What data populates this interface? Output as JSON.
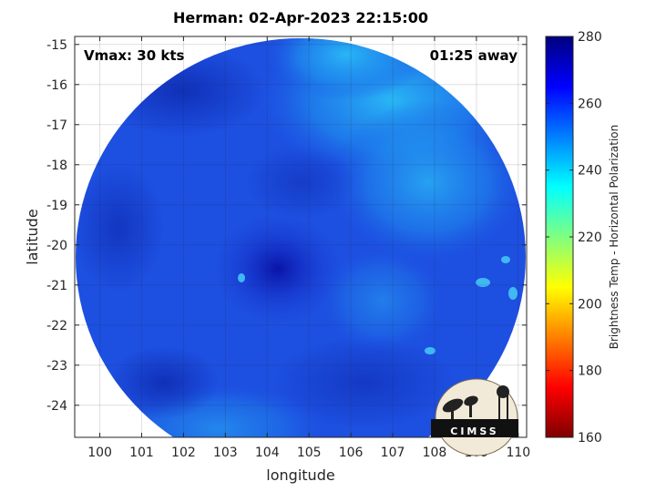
{
  "title": "Herman: 02-Apr-2023 22:15:00",
  "annotations": {
    "vmax": "Vmax: 30 kts",
    "time_away": "01:25 away"
  },
  "map": {
    "xlabel": "longitude",
    "ylabel": "latitude",
    "xlim": [
      99.4,
      110.2
    ],
    "ylim": [
      -24.8,
      -14.8
    ],
    "x_ticks": [
      "100",
      "101",
      "102",
      "103",
      "104",
      "105",
      "106",
      "107",
      "108",
      "109",
      "110"
    ],
    "y_ticks": [
      "-15",
      "-16",
      "-17",
      "-18",
      "-19",
      "-20",
      "-21",
      "-22",
      "-23",
      "-24"
    ],
    "grid": true
  },
  "colorbar": {
    "label": "Brightness Temp - Horizontal Polarization",
    "ticks": [
      "160",
      "180",
      "200",
      "220",
      "240",
      "260",
      "280"
    ],
    "range": [
      160,
      280
    ],
    "colors": [
      "#7f0000",
      "#ff0000",
      "#ff8000",
      "#ffff00",
      "#80ff80",
      "#00ffff",
      "#0080ff",
      "#0000ff",
      "#00007f"
    ]
  },
  "logo": {
    "text": "CIMSS"
  }
}
